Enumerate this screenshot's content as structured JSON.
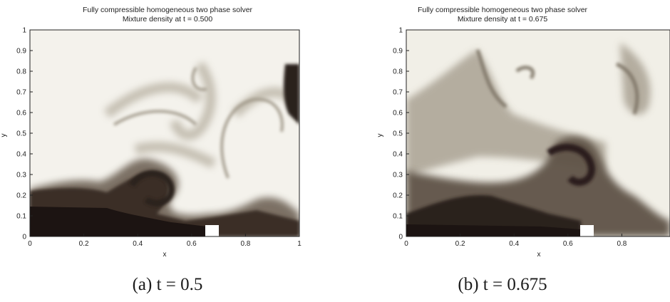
{
  "panels": [
    {
      "title_line1": "Fully compressible homogeneous two phase solver",
      "title_line2": "Mixture density at t = 0.500",
      "xlabel": "x",
      "ylabel": "y",
      "xticks": [
        "0",
        "0.2",
        "0.4",
        "0.6",
        "0.8",
        "1"
      ],
      "yticks": [
        "0",
        "0.1",
        "0.2",
        "0.3",
        "0.4",
        "0.5",
        "0.6",
        "0.7",
        "0.8",
        "0.9",
        "1"
      ],
      "caption": "(a) t = 0.5"
    },
    {
      "title_line1": "Fully compressible homogeneous two phase solver",
      "title_line2": "Mixture density at t = 0.675",
      "xlabel": "x",
      "ylabel": "y",
      "xticks": [
        "0",
        "0.2",
        "0.4",
        "0.6",
        "0.8"
      ],
      "yticks": [
        "0",
        "0.1",
        "0.2",
        "0.3",
        "0.4",
        "0.5",
        "0.6",
        "0.7",
        "0.8",
        "0.9",
        "1"
      ],
      "caption": "(b) t = 0.675"
    }
  ],
  "colors": {
    "light_phase": "#f3f1ea",
    "heavy_phase": "#1c1412",
    "mid_phase": "#8d8476"
  }
}
